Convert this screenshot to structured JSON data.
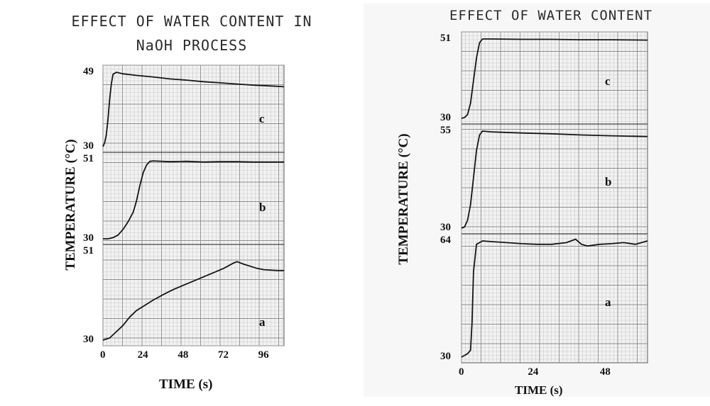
{
  "chart_data": [
    {
      "type": "line",
      "title": "EFFECT OF WATER CONTENT IN",
      "subtitle": "NaOH PROCESS",
      "xlabel": "TIME (s)",
      "ylabel": "TEMPERATURE (°C)",
      "x_ticks": [
        "0",
        "24",
        "48",
        "72",
        "96"
      ],
      "xlim": [
        0,
        108
      ],
      "grid": true,
      "panels": [
        {
          "name": "c",
          "ymin_label": "30",
          "ymax_label": "49",
          "ylim": [
            30,
            49
          ],
          "x": [
            0,
            1,
            2,
            3,
            4,
            5,
            6,
            8,
            12,
            20,
            30,
            40,
            50,
            60,
            70,
            80,
            90,
            100,
            108
          ],
          "y": [
            30,
            31,
            33,
            37,
            42,
            46,
            48.5,
            49,
            48.6,
            48.2,
            47.8,
            47.3,
            47,
            46.6,
            46.3,
            46,
            45.7,
            45.5,
            45.3
          ]
        },
        {
          "name": "b",
          "ymin_label": "30",
          "ymax_label": "51",
          "ylim": [
            30,
            51
          ],
          "x": [
            0,
            3,
            6,
            9,
            12,
            15,
            18,
            20,
            22,
            24,
            26,
            28,
            30,
            40,
            50,
            60,
            70,
            80,
            90,
            100,
            108
          ],
          "y": [
            30,
            30,
            30.3,
            31,
            32.5,
            34.5,
            37,
            40,
            44,
            47.5,
            49.5,
            50.5,
            50.6,
            50.4,
            50.5,
            50.3,
            50.4,
            50.4,
            50.3,
            50.3,
            50.3
          ]
        },
        {
          "name": "a",
          "ymin_label": "30",
          "ymax_label": "51",
          "ylim": [
            30,
            51
          ],
          "x": [
            0,
            4,
            8,
            12,
            16,
            20,
            24,
            30,
            36,
            42,
            48,
            54,
            60,
            66,
            72,
            78,
            80,
            84,
            88,
            92,
            96,
            100,
            104,
            108
          ],
          "y": [
            30,
            30.5,
            32,
            33.5,
            35.5,
            37,
            38,
            39.5,
            40.8,
            42,
            43,
            44,
            45,
            46,
            47,
            48.3,
            48.6,
            48,
            47.5,
            47,
            46.7,
            46.6,
            46.5,
            46.5
          ]
        }
      ]
    },
    {
      "type": "line",
      "title": "EFFECT OF WATER CONTENT",
      "xlabel": "TIME (s)",
      "ylabel": "TEMPERATURE (°C)",
      "x_ticks": [
        "0",
        "24",
        "48"
      ],
      "xlim": [
        0,
        62
      ],
      "grid": true,
      "panels": [
        {
          "name": "c",
          "ymin_label": "30",
          "ymax_label": "51",
          "ylim": [
            30,
            51
          ],
          "x": [
            0,
            1,
            2,
            3,
            4,
            5,
            6,
            7,
            10,
            20,
            30,
            40,
            50,
            62
          ],
          "y": [
            30,
            30.2,
            31,
            34,
            40,
            46,
            50,
            51,
            51,
            50.9,
            50.9,
            50.8,
            50.8,
            50.7
          ]
        },
        {
          "name": "b",
          "ymin_label": "30",
          "ymax_label": "55",
          "ylim": [
            30,
            55
          ],
          "x": [
            0,
            1,
            2,
            3,
            4,
            5,
            6,
            7,
            10,
            20,
            30,
            40,
            50,
            62
          ],
          "y": [
            30,
            30.3,
            32,
            36,
            43,
            50,
            54,
            55,
            54.8,
            54.5,
            54.3,
            54,
            53.8,
            53.6
          ]
        },
        {
          "name": "a",
          "ymin_label": "30",
          "ymax_label": "64",
          "ylim": [
            30,
            64
          ],
          "x": [
            0,
            1,
            2,
            3,
            3.5,
            4,
            5,
            7,
            10,
            15,
            20,
            25,
            30,
            35,
            38,
            40,
            42,
            46,
            50,
            54,
            58,
            62
          ],
          "y": [
            30,
            30.5,
            31,
            32,
            40,
            55,
            63,
            64,
            63.8,
            63.5,
            63.2,
            63,
            63,
            63.5,
            64.5,
            63,
            62.5,
            63,
            63.2,
            63.5,
            63,
            64
          ]
        }
      ]
    }
  ]
}
